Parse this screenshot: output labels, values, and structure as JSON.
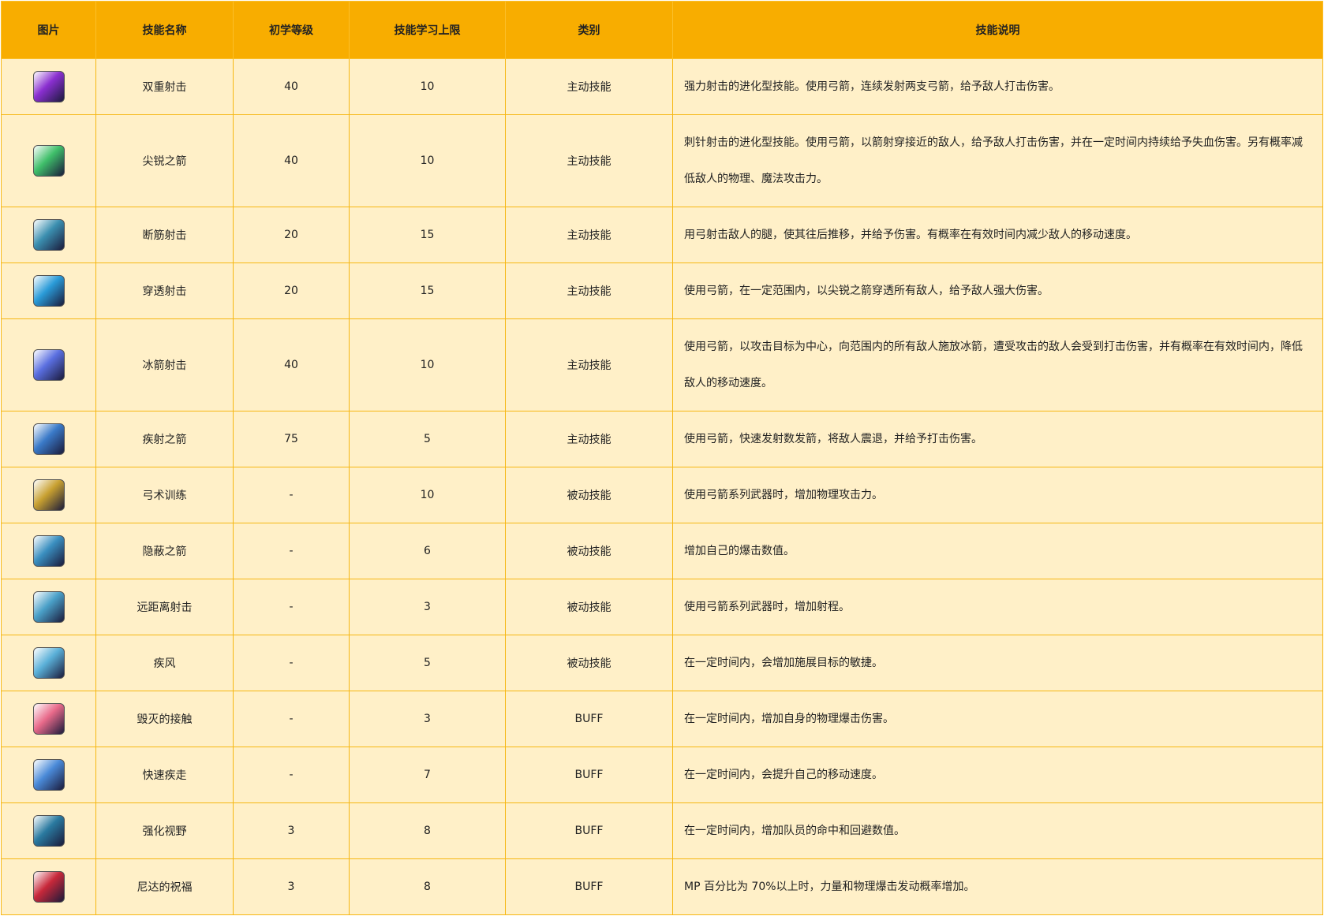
{
  "headers": [
    "图片",
    "技能名称",
    "初学等级",
    "技能学习上限",
    "类别",
    "技能说明"
  ],
  "rows": [
    {
      "icon": "double-shot-icon",
      "color": "#8a2fd0",
      "name": "双重射击",
      "level": "40",
      "max": "10",
      "type": "主动技能",
      "desc": "强力射击的进化型技能。使用弓箭，连续发射两支弓箭，给予敌人打击伤害。"
    },
    {
      "icon": "sharp-arrow-icon",
      "color": "#3fbf6a",
      "name": "尖锐之箭",
      "level": "40",
      "max": "10",
      "type": "主动技能",
      "desc": "刺针射击的进化型技能。使用弓箭，以箭射穿接近的敌人，给予敌人打击伤害，并在一定时间内持续给予失血伤害。另有概率减低敌人的物理、魔法攻击力。"
    },
    {
      "icon": "hamstring-shot-icon",
      "color": "#3b8fb0",
      "name": "断筋射击",
      "level": "20",
      "max": "15",
      "type": "主动技能",
      "desc": "用弓射击敌人的腿，使其往后推移，并给予伤害。有概率在有效时间内减少敌人的移动速度。"
    },
    {
      "icon": "pierce-shot-icon",
      "color": "#2a9bd8",
      "name": "穿透射击",
      "level": "20",
      "max": "15",
      "type": "主动技能",
      "desc": "使用弓箭，在一定范围内，以尖锐之箭穿透所有敌人，给予敌人强大伤害。"
    },
    {
      "icon": "ice-arrow-icon",
      "color": "#5a6fe0",
      "name": "冰箭射击",
      "level": "40",
      "max": "10",
      "type": "主动技能",
      "desc": "使用弓箭，以攻击目标为中心，向范围内的所有敌人施放冰箭，遭受攻击的敌人会受到打击伤害，并有概率在有效时间内，降低敌人的移动速度。"
    },
    {
      "icon": "rapid-arrow-icon",
      "color": "#3a7ac8",
      "name": "疾射之箭",
      "level": "75",
      "max": "5",
      "type": "主动技能",
      "desc": "使用弓箭，快速发射数发箭，将敌人震退，并给予打击伤害。"
    },
    {
      "icon": "archery-training-icon",
      "color": "#c8a030",
      "name": "弓术训练",
      "level": "-",
      "max": "10",
      "type": "被动技能",
      "desc": "使用弓箭系列武器时，增加物理攻击力。"
    },
    {
      "icon": "hidden-arrow-icon",
      "color": "#3a8fc0",
      "name": "隐蔽之箭",
      "level": "-",
      "max": "6",
      "type": "被动技能",
      "desc": "增加自己的爆击数值。"
    },
    {
      "icon": "long-range-icon",
      "color": "#4aa0c8",
      "name": "远距离射击",
      "level": "-",
      "max": "3",
      "type": "被动技能",
      "desc": "使用弓箭系列武器时，增加射程。"
    },
    {
      "icon": "gale-icon",
      "color": "#5ab0d8",
      "name": "疾风",
      "level": "-",
      "max": "5",
      "type": "被动技能",
      "desc": "在一定时间内，会增加施展目标的敏捷。"
    },
    {
      "icon": "destruction-touch-icon",
      "color": "#e86a8a",
      "name": "毁灭的接触",
      "level": "-",
      "max": "3",
      "type": "BUFF",
      "desc": "在一定时间内，增加自身的物理爆击伤害。"
    },
    {
      "icon": "swift-run-icon",
      "color": "#4a8ad8",
      "name": "快速疾走",
      "level": "-",
      "max": "7",
      "type": "BUFF",
      "desc": "在一定时间内，会提升自己的移动速度。"
    },
    {
      "icon": "enhanced-vision-icon",
      "color": "#2a7aa0",
      "name": "强化视野",
      "level": "3",
      "max": "8",
      "type": "BUFF",
      "desc": "在一定时间内，增加队员的命中和回避数值。"
    },
    {
      "icon": "nida-blessing-icon",
      "color": "#c8283a",
      "name": "尼达的祝福",
      "level": "3",
      "max": "8",
      "type": "BUFF",
      "desc": "MP 百分比为 70%以上时，力量和物理爆击发动概率增加。"
    }
  ]
}
